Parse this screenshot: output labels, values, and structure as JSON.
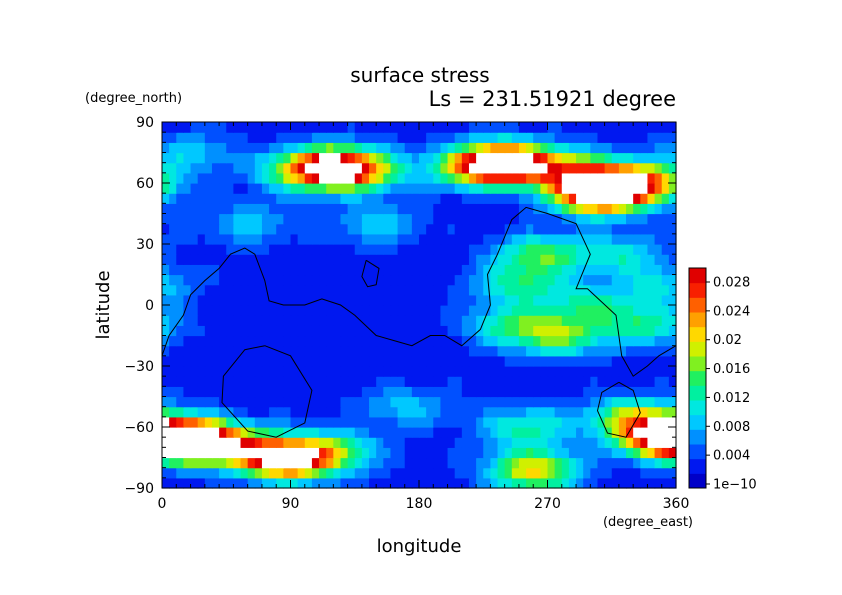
{
  "chart_data": {
    "type": "heatmap",
    "title": "surface stress",
    "subtitle": "Ls = 231.51921 degree",
    "xlabel": "longitude",
    "ylabel": "latitude",
    "x_unit": "(degree_east)",
    "y_unit": "(degree_north)",
    "xlim": [
      0,
      360
    ],
    "ylim": [
      -90,
      90
    ],
    "x_ticks": [
      "0",
      "90",
      "180",
      "270",
      "360"
    ],
    "y_ticks": [
      "90",
      "60",
      "30",
      "0",
      "−30",
      "−60",
      "−90"
    ],
    "colorbar": {
      "ticks": [
        "0.028",
        "0.024",
        "0.02",
        "0.016",
        "0.012",
        "0.008",
        "0.004",
        "1e−10"
      ],
      "min": 0,
      "max": 0.03,
      "colors": [
        "#0000c8",
        "#0018f0",
        "#0050ff",
        "#0090ff",
        "#00c8ff",
        "#00e8e0",
        "#00f0a0",
        "#20f060",
        "#80f020",
        "#d0f000",
        "#ffd800",
        "#ffa000",
        "#ff6000",
        "#f82000",
        "#e00000"
      ]
    },
    "field": {
      "resolution_deg": 5,
      "background": 0.003,
      "blobs": [
        {
          "lon": 120,
          "lat": 68,
          "value": 0.024
        },
        {
          "lon": 140,
          "lat": 66,
          "value": 0.012
        },
        {
          "lon": 95,
          "lat": 66,
          "value": 0.01
        },
        {
          "lon": 240,
          "lat": 70,
          "value": 0.03
        },
        {
          "lon": 215,
          "lat": 68,
          "value": 0.012
        },
        {
          "lon": 270,
          "lat": 68,
          "value": 0.008
        },
        {
          "lon": 305,
          "lat": 55,
          "value": 0.03
        },
        {
          "lon": 335,
          "lat": 60,
          "value": 0.022
        },
        {
          "lon": 295,
          "lat": 65,
          "value": 0.012
        },
        {
          "lon": 20,
          "lat": -66,
          "value": 0.032
        },
        {
          "lon": 55,
          "lat": -70,
          "value": 0.015
        },
        {
          "lon": 88,
          "lat": -76,
          "value": 0.026
        },
        {
          "lon": 120,
          "lat": -72,
          "value": 0.012
        },
        {
          "lon": 260,
          "lat": -81,
          "value": 0.018
        },
        {
          "lon": 350,
          "lat": -65,
          "value": 0.024
        },
        {
          "lon": 330,
          "lat": -55,
          "value": 0.014
        },
        {
          "lon": 265,
          "lat": 25,
          "value": 0.012
        },
        {
          "lon": 250,
          "lat": 10,
          "value": 0.01
        },
        {
          "lon": 245,
          "lat": -10,
          "value": 0.01
        },
        {
          "lon": 280,
          "lat": -15,
          "value": 0.012
        },
        {
          "lon": 300,
          "lat": 0,
          "value": 0.009
        },
        {
          "lon": 320,
          "lat": 25,
          "value": 0.008
        },
        {
          "lon": 340,
          "lat": -10,
          "value": 0.01
        },
        {
          "lon": 350,
          "lat": 10,
          "value": 0.007
        },
        {
          "lon": 255,
          "lat": -60,
          "value": 0.01
        },
        {
          "lon": 170,
          "lat": -50,
          "value": 0.006
        },
        {
          "lon": 60,
          "lat": 40,
          "value": 0.006
        },
        {
          "lon": 150,
          "lat": 40,
          "value": 0.006
        },
        {
          "lon": 20,
          "lat": 75,
          "value": 0.006
        }
      ]
    },
    "contours": [
      [
        [
          0,
          -25
        ],
        [
          5,
          -15
        ],
        [
          15,
          -5
        ],
        [
          20,
          5
        ],
        [
          30,
          12
        ],
        [
          40,
          18
        ],
        [
          48,
          25
        ],
        [
          58,
          28
        ],
        [
          65,
          25
        ],
        [
          72,
          12
        ],
        [
          75,
          2
        ],
        [
          85,
          0
        ],
        [
          100,
          0
        ],
        [
          112,
          3
        ],
        [
          125,
          0
        ],
        [
          135,
          -5
        ],
        [
          150,
          -15
        ],
        [
          165,
          -18
        ],
        [
          175,
          -20
        ],
        [
          188,
          -15
        ],
        [
          198,
          -15
        ],
        [
          210,
          -20
        ],
        [
          223,
          -12
        ],
        [
          230,
          0
        ],
        [
          228,
          15
        ],
        [
          235,
          25
        ],
        [
          245,
          42
        ],
        [
          255,
          48
        ],
        [
          270,
          45
        ],
        [
          290,
          40
        ],
        [
          300,
          25
        ],
        [
          290,
          8
        ],
        [
          298,
          8
        ],
        [
          318,
          -5
        ],
        [
          322,
          -25
        ],
        [
          330,
          -35
        ],
        [
          340,
          -30
        ],
        [
          348,
          -25
        ],
        [
          360,
          -20
        ]
      ],
      [
        [
          72,
          -20
        ],
        [
          90,
          -25
        ],
        [
          105,
          -42
        ],
        [
          100,
          -58
        ],
        [
          80,
          -65
        ],
        [
          60,
          -62
        ],
        [
          42,
          -48
        ],
        [
          43,
          -35
        ],
        [
          58,
          -22
        ],
        [
          72,
          -20
        ]
      ],
      [
        [
          320,
          -38
        ],
        [
          330,
          -42
        ],
        [
          335,
          -53
        ],
        [
          325,
          -65
        ],
        [
          312,
          -63
        ],
        [
          305,
          -52
        ],
        [
          308,
          -43
        ],
        [
          320,
          -38
        ]
      ],
      [
        [
          143,
          22
        ],
        [
          152,
          18
        ],
        [
          150,
          10
        ],
        [
          144,
          9
        ],
        [
          140,
          14
        ],
        [
          143,
          22
        ]
      ]
    ]
  }
}
